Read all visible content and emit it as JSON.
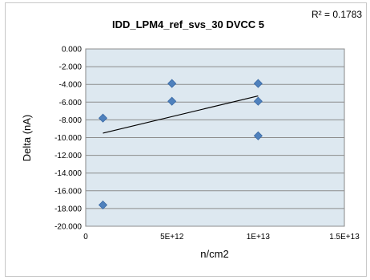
{
  "chart_data": {
    "type": "scatter",
    "title": "IDD_LPM4_ref_svs_30 DVCC 5",
    "xlabel": "n/cm2",
    "ylabel": "Delta (nA)",
    "r_squared_text": "R² = 0.1783",
    "xlim": [
      0,
      15000000000000
    ],
    "ylim": [
      -20,
      0
    ],
    "x_ticks": [
      {
        "value": 0,
        "label": "0"
      },
      {
        "value": 5000000000000,
        "label": "5E+12"
      },
      {
        "value": 10000000000000,
        "label": "1E+13"
      },
      {
        "value": 15000000000000,
        "label": "1.5E+13"
      }
    ],
    "y_ticks": [
      {
        "value": 0,
        "label": "0.000"
      },
      {
        "value": -2,
        "label": "-2.000"
      },
      {
        "value": -4,
        "label": "-4.000"
      },
      {
        "value": -6,
        "label": "-6.000"
      },
      {
        "value": -8,
        "label": "-8.000"
      },
      {
        "value": -10,
        "label": "-10.000"
      },
      {
        "value": -12,
        "label": "-12.000"
      },
      {
        "value": -14,
        "label": "-14.000"
      },
      {
        "value": -16,
        "label": "-16.000"
      },
      {
        "value": -18,
        "label": "-18.000"
      },
      {
        "value": -20,
        "label": "-20.000"
      }
    ],
    "points": [
      {
        "x": 1000000000000,
        "y": -7.8
      },
      {
        "x": 1000000000000,
        "y": -17.6
      },
      {
        "x": 5000000000000,
        "y": -3.9
      },
      {
        "x": 5000000000000,
        "y": -5.9
      },
      {
        "x": 10000000000000,
        "y": -3.9
      },
      {
        "x": 10000000000000,
        "y": -5.9
      },
      {
        "x": 10000000000000,
        "y": -9.8
      }
    ],
    "trendline": {
      "x": [
        1000000000000,
        10000000000000
      ],
      "y": [
        -9.5,
        -5.3
      ]
    },
    "grid": true,
    "plot_background": "#dde8f0",
    "marker_color": "#4f81bd",
    "marker_edge_color": "#3a6aa5",
    "trendline_color": "#000000"
  }
}
